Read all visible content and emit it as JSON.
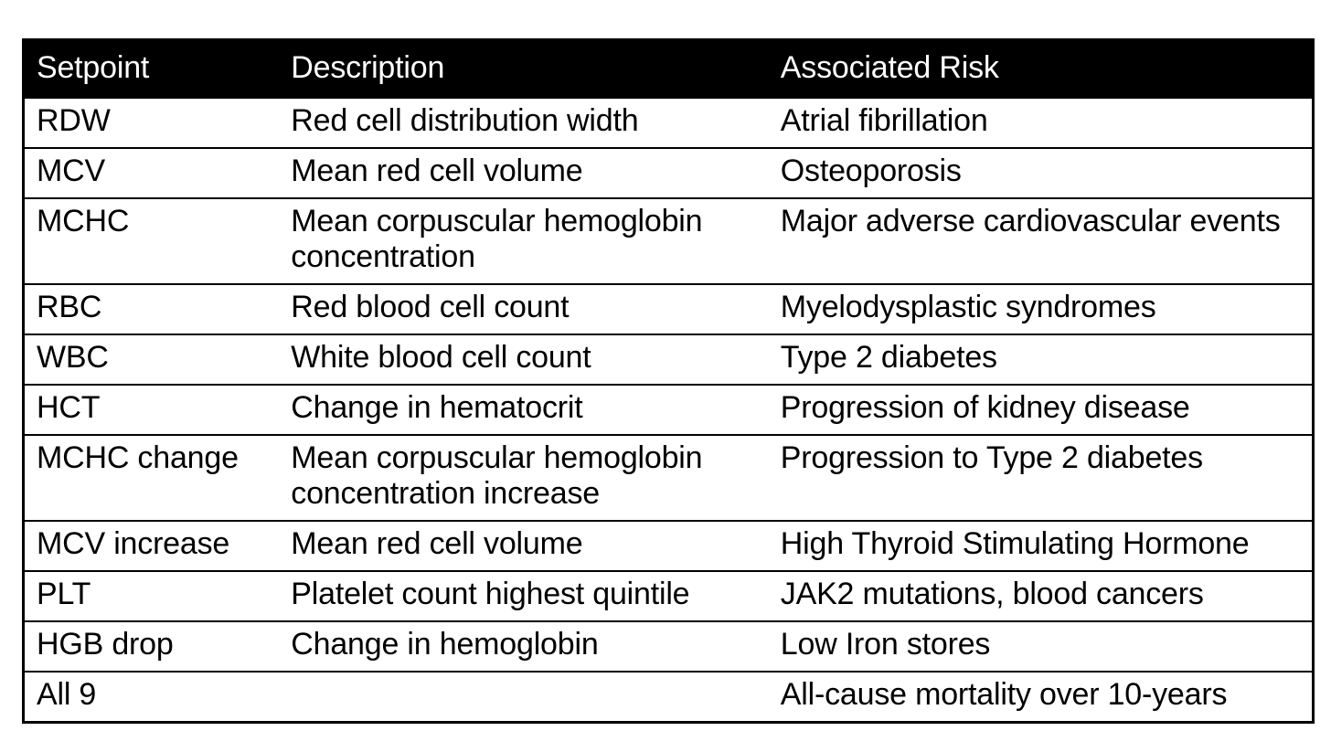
{
  "table": {
    "columns": [
      "Setpoint",
      "Description",
      "Associated Risk"
    ],
    "rows": [
      {
        "setpoint": "RDW",
        "description": "Red cell distribution width",
        "risk": "Atrial fibrillation"
      },
      {
        "setpoint": "MCV",
        "description": "Mean red cell volume",
        "risk": "Osteoporosis"
      },
      {
        "setpoint": "MCHC",
        "description": "Mean corpuscular hemoglobin concentration",
        "risk": "Major adverse cardiovascular events"
      },
      {
        "setpoint": "RBC",
        "description": "Red blood cell count",
        "risk": "Myelodysplastic syndromes"
      },
      {
        "setpoint": "WBC",
        "description": "White blood cell count",
        "risk": "Type 2 diabetes"
      },
      {
        "setpoint": "HCT",
        "description": "Change in hematocrit",
        "risk": "Progression of kidney disease"
      },
      {
        "setpoint": "MCHC change",
        "description": "Mean corpuscular hemoglobin concentration increase",
        "risk": "Progression to Type 2 diabetes"
      },
      {
        "setpoint": "MCV increase",
        "description": "Mean red cell volume",
        "risk": "High Thyroid Stimulating Hormone"
      },
      {
        "setpoint": "PLT",
        "description": "Platelet count highest quintile",
        "risk": "JAK2 mutations, blood cancers"
      },
      {
        "setpoint": "HGB drop",
        "description": "Change in hemoglobin",
        "risk": "Low Iron stores"
      },
      {
        "setpoint": "All 9",
        "description": "",
        "risk": "All-cause mortality over 10-years"
      }
    ],
    "colors": {
      "header_bg": "#000000",
      "header_text": "#ffffff",
      "body_text": "#000000",
      "border": "#000000",
      "page_background": "#ffffff"
    }
  },
  "chart_data": {
    "type": "table",
    "title": "",
    "columns": [
      "Setpoint",
      "Description",
      "Associated Risk"
    ],
    "rows": [
      [
        "RDW",
        "Red cell distribution width",
        "Atrial fibrillation"
      ],
      [
        "MCV",
        "Mean red cell volume",
        "Osteoporosis"
      ],
      [
        "MCHC",
        "Mean corpuscular hemoglobin concentration",
        "Major adverse cardiovascular events"
      ],
      [
        "RBC",
        "Red blood cell count",
        "Myelodysplastic syndromes"
      ],
      [
        "WBC",
        "White blood cell count",
        "Type 2 diabetes"
      ],
      [
        "HCT",
        "Change in hematocrit",
        "Progression of kidney disease"
      ],
      [
        "MCHC change",
        "Mean corpuscular hemoglobin concentration increase",
        "Progression to Type 2 diabetes"
      ],
      [
        "MCV increase",
        "Mean red cell volume",
        "High Thyroid Stimulating Hormone"
      ],
      [
        "PLT",
        "Platelet count highest quintile",
        "JAK2 mutations, blood cancers"
      ],
      [
        "HGB drop",
        "Change in hemoglobin",
        "Low Iron stores"
      ],
      [
        "All 9",
        "",
        "All-cause mortality over 10-years"
      ]
    ]
  }
}
